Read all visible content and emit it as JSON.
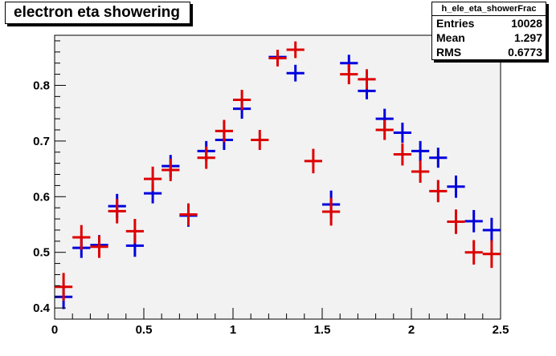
{
  "title": "electron eta showering",
  "stats": {
    "name": "h_ele_eta_showerFrac",
    "rows": [
      {
        "label": "Entries",
        "value": "10028"
      },
      {
        "label": "Mean",
        "value": "1.297"
      },
      {
        "label": "RMS",
        "value": "0.6773"
      }
    ]
  },
  "colors": {
    "frame_bg": "#f2f2f2",
    "series_blue": "#0000dd",
    "series_red": "#dd0000"
  },
  "chart_data": {
    "type": "scatter",
    "title": "electron eta showering",
    "xlabel": "",
    "ylabel": "",
    "xlim": [
      0,
      2.5
    ],
    "ylim": [
      0.38,
      0.89
    ],
    "grid": false,
    "x_ticks": [
      {
        "v": 0,
        "label": "0"
      },
      {
        "v": 0.5,
        "label": "0.5"
      },
      {
        "v": 1,
        "label": "1"
      },
      {
        "v": 1.5,
        "label": "1.5"
      },
      {
        "v": 2,
        "label": "2"
      },
      {
        "v": 2.5,
        "label": "2.5"
      }
    ],
    "y_ticks": [
      {
        "v": 0.4,
        "label": "0.4"
      },
      {
        "v": 0.5,
        "label": "0.5"
      },
      {
        "v": 0.6,
        "label": "0.6"
      },
      {
        "v": 0.7,
        "label": "0.7"
      },
      {
        "v": 0.8,
        "label": "0.8"
      }
    ],
    "series": [
      {
        "color": "#0000dd",
        "points": [
          {
            "x": 0.05,
            "y": 0.42,
            "xerr": 0.05,
            "yerr": 0.022
          },
          {
            "x": 0.15,
            "y": 0.508,
            "xerr": 0.05,
            "yerr": 0.018
          },
          {
            "x": 0.25,
            "y": 0.513,
            "xerr": 0.05,
            "yerr": 0.018
          },
          {
            "x": 0.35,
            "y": 0.583,
            "xerr": 0.05,
            "yerr": 0.022
          },
          {
            "x": 0.45,
            "y": 0.512,
            "xerr": 0.05,
            "yerr": 0.02
          },
          {
            "x": 0.55,
            "y": 0.606,
            "xerr": 0.05,
            "yerr": 0.018
          },
          {
            "x": 0.65,
            "y": 0.655,
            "xerr": 0.05,
            "yerr": 0.02
          },
          {
            "x": 0.75,
            "y": 0.566,
            "xerr": 0.05,
            "yerr": 0.02
          },
          {
            "x": 0.85,
            "y": 0.682,
            "xerr": 0.05,
            "yerr": 0.018
          },
          {
            "x": 0.95,
            "y": 0.702,
            "xerr": 0.05,
            "yerr": 0.018
          },
          {
            "x": 1.05,
            "y": 0.758,
            "xerr": 0.05,
            "yerr": 0.018
          },
          {
            "x": 1.25,
            "y": 0.851,
            "xerr": 0.05,
            "yerr": 0.012
          },
          {
            "x": 1.35,
            "y": 0.822,
            "xerr": 0.05,
            "yerr": 0.015
          },
          {
            "x": 1.55,
            "y": 0.586,
            "xerr": 0.05,
            "yerr": 0.025
          },
          {
            "x": 1.65,
            "y": 0.84,
            "xerr": 0.05,
            "yerr": 0.015
          },
          {
            "x": 1.75,
            "y": 0.79,
            "xerr": 0.05,
            "yerr": 0.015
          },
          {
            "x": 1.85,
            "y": 0.74,
            "xerr": 0.05,
            "yerr": 0.018
          },
          {
            "x": 1.95,
            "y": 0.715,
            "xerr": 0.05,
            "yerr": 0.018
          },
          {
            "x": 2.05,
            "y": 0.682,
            "xerr": 0.05,
            "yerr": 0.018
          },
          {
            "x": 2.15,
            "y": 0.67,
            "xerr": 0.05,
            "yerr": 0.018
          },
          {
            "x": 2.25,
            "y": 0.618,
            "xerr": 0.05,
            "yerr": 0.02
          },
          {
            "x": 2.35,
            "y": 0.556,
            "xerr": 0.05,
            "yerr": 0.02
          },
          {
            "x": 2.45,
            "y": 0.54,
            "xerr": 0.05,
            "yerr": 0.022
          }
        ]
      },
      {
        "color": "#dd0000",
        "points": [
          {
            "x": 0.05,
            "y": 0.438,
            "xerr": 0.05,
            "yerr": 0.025
          },
          {
            "x": 0.15,
            "y": 0.527,
            "xerr": 0.05,
            "yerr": 0.022
          },
          {
            "x": 0.25,
            "y": 0.51,
            "xerr": 0.05,
            "yerr": 0.02
          },
          {
            "x": 0.35,
            "y": 0.574,
            "xerr": 0.05,
            "yerr": 0.022
          },
          {
            "x": 0.45,
            "y": 0.538,
            "xerr": 0.05,
            "yerr": 0.022
          },
          {
            "x": 0.55,
            "y": 0.632,
            "xerr": 0.05,
            "yerr": 0.022
          },
          {
            "x": 0.65,
            "y": 0.648,
            "xerr": 0.05,
            "yerr": 0.02
          },
          {
            "x": 0.75,
            "y": 0.568,
            "xerr": 0.05,
            "yerr": 0.02
          },
          {
            "x": 0.85,
            "y": 0.67,
            "xerr": 0.05,
            "yerr": 0.02
          },
          {
            "x": 0.95,
            "y": 0.718,
            "xerr": 0.05,
            "yerr": 0.02
          },
          {
            "x": 1.05,
            "y": 0.774,
            "xerr": 0.05,
            "yerr": 0.018
          },
          {
            "x": 1.15,
            "y": 0.702,
            "xerr": 0.05,
            "yerr": 0.018
          },
          {
            "x": 1.25,
            "y": 0.849,
            "xerr": 0.05,
            "yerr": 0.015
          },
          {
            "x": 1.35,
            "y": 0.864,
            "xerr": 0.05,
            "yerr": 0.015
          },
          {
            "x": 1.45,
            "y": 0.664,
            "xerr": 0.05,
            "yerr": 0.022
          },
          {
            "x": 1.55,
            "y": 0.573,
            "xerr": 0.05,
            "yerr": 0.025
          },
          {
            "x": 1.65,
            "y": 0.82,
            "xerr": 0.05,
            "yerr": 0.018
          },
          {
            "x": 1.75,
            "y": 0.811,
            "xerr": 0.05,
            "yerr": 0.018
          },
          {
            "x": 1.85,
            "y": 0.72,
            "xerr": 0.05,
            "yerr": 0.018
          },
          {
            "x": 1.95,
            "y": 0.676,
            "xerr": 0.05,
            "yerr": 0.02
          },
          {
            "x": 2.05,
            "y": 0.645,
            "xerr": 0.05,
            "yerr": 0.02
          },
          {
            "x": 2.15,
            "y": 0.61,
            "xerr": 0.05,
            "yerr": 0.02
          },
          {
            "x": 2.25,
            "y": 0.555,
            "xerr": 0.05,
            "yerr": 0.022
          },
          {
            "x": 2.35,
            "y": 0.5,
            "xerr": 0.05,
            "yerr": 0.022
          },
          {
            "x": 2.45,
            "y": 0.497,
            "xerr": 0.05,
            "yerr": 0.025
          }
        ]
      }
    ]
  }
}
